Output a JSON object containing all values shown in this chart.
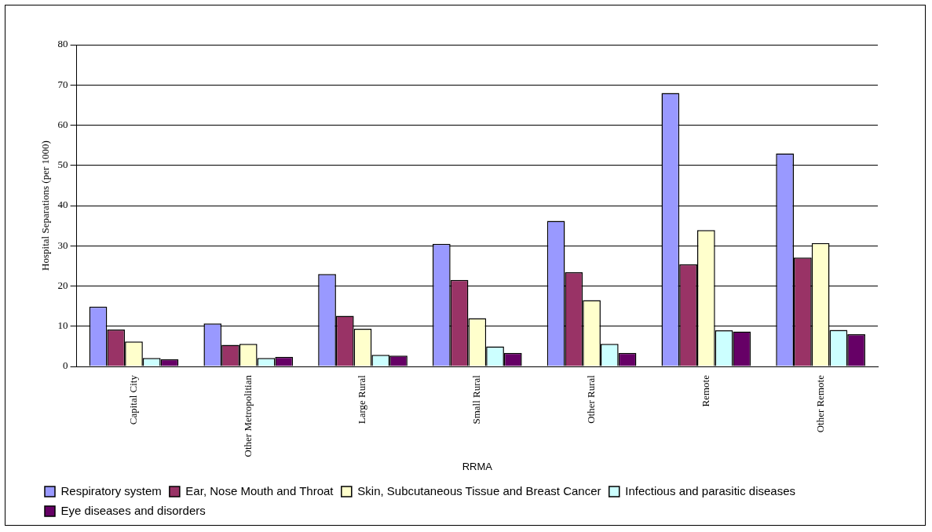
{
  "chart_data": {
    "type": "bar",
    "ylabel": "Hospital Separations (per 1000)",
    "xlabel": "RRMA",
    "categories": [
      "Capital City",
      "Other Metropolitian",
      "Large Rural",
      "Small Rural",
      "Other Rural",
      "Remote",
      "Other Remote"
    ],
    "series": [
      {
        "name": "Respiratory system",
        "color": "#9999ff",
        "values": [
          14.9,
          10.7,
          23,
          30.5,
          36.2,
          68,
          53
        ]
      },
      {
        "name": "Ear, Nose Mouth and Throat",
        "color": "#993366",
        "values": [
          9.2,
          5.4,
          12.6,
          21.5,
          23.4,
          25.4,
          27.1
        ]
      },
      {
        "name": "Skin, Subcutaneous Tissue and Breast Cancer",
        "color": "#ffffcc",
        "values": [
          6.2,
          5.6,
          9.4,
          12,
          16.5,
          33.9,
          30.7
        ]
      },
      {
        "name": "Infectious and parasitic diseases",
        "color": "#ccffff",
        "values": [
          2.1,
          2.1,
          2.9,
          5,
          5.6,
          9,
          9.1
        ]
      },
      {
        "name": "Eye diseases and disorders",
        "color": "#660066",
        "values": [
          1.8,
          2.4,
          2.7,
          3.4,
          3.4,
          8.7,
          8
        ]
      }
    ],
    "ylim": [
      0,
      80
    ],
    "yticks": [
      0,
      10,
      20,
      30,
      40,
      50,
      60,
      70,
      80
    ],
    "grid": "y",
    "legend": "bottom"
  }
}
